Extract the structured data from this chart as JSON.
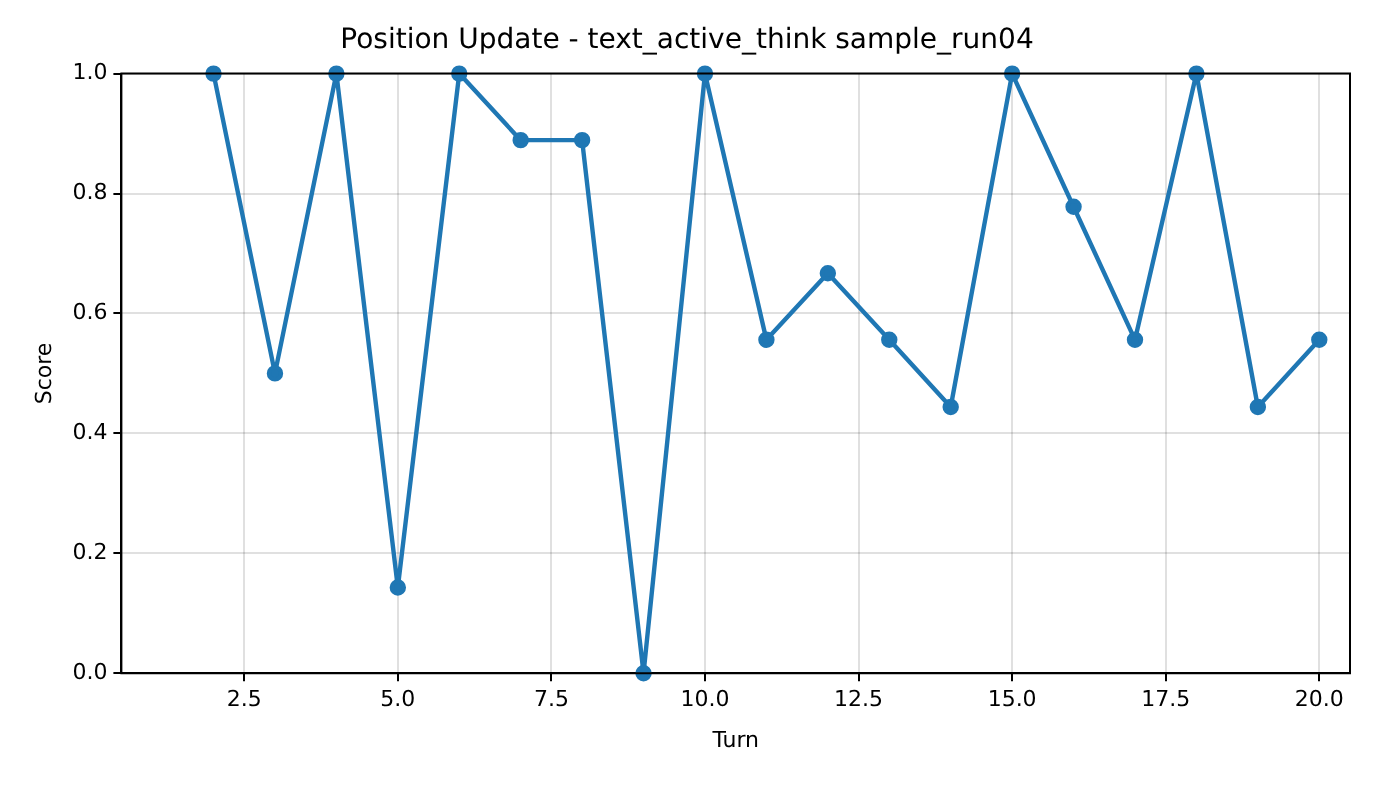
{
  "chart_data": {
    "type": "line",
    "title": "Position Update - text_active_think sample_run04",
    "xlabel": "Turn",
    "ylabel": "Score",
    "x": [
      2,
      3,
      4,
      5,
      6,
      7,
      8,
      9,
      10,
      11,
      12,
      13,
      14,
      15,
      16,
      17,
      18,
      19,
      20
    ],
    "series": [
      {
        "color": "#1f77b4",
        "values": [
          1.0,
          0.5,
          1.0,
          0.143,
          1.0,
          0.889,
          0.889,
          0.0,
          1.0,
          0.556,
          0.667,
          0.556,
          0.444,
          1.0,
          0.778,
          0.556,
          1.0,
          0.444,
          0.556
        ]
      }
    ],
    "xlim": [
      0.5,
      20.5
    ],
    "xticks": [
      {
        "value": 2.5,
        "label": "2.5"
      },
      {
        "value": 5,
        "label": "5.0"
      },
      {
        "value": 7.5,
        "label": "7.5"
      },
      {
        "value": 10,
        "label": "10.0"
      },
      {
        "value": 12.5,
        "label": "12.5"
      },
      {
        "value": 15,
        "label": "15.0"
      },
      {
        "value": 17.5,
        "label": "17.5"
      },
      {
        "value": 20,
        "label": "20.0"
      }
    ],
    "ylim": [
      0,
      1
    ],
    "yticks": [
      {
        "value": 0,
        "label": "0.0"
      },
      {
        "value": 0.2,
        "label": "0.2"
      },
      {
        "value": 0.4,
        "label": "0.4"
      },
      {
        "value": 0.6,
        "label": "0.6"
      },
      {
        "value": 0.8,
        "label": "0.8"
      },
      {
        "value": 1,
        "label": "1.0"
      }
    ],
    "grid": true,
    "marker": "circle",
    "line_style": "solid"
  }
}
